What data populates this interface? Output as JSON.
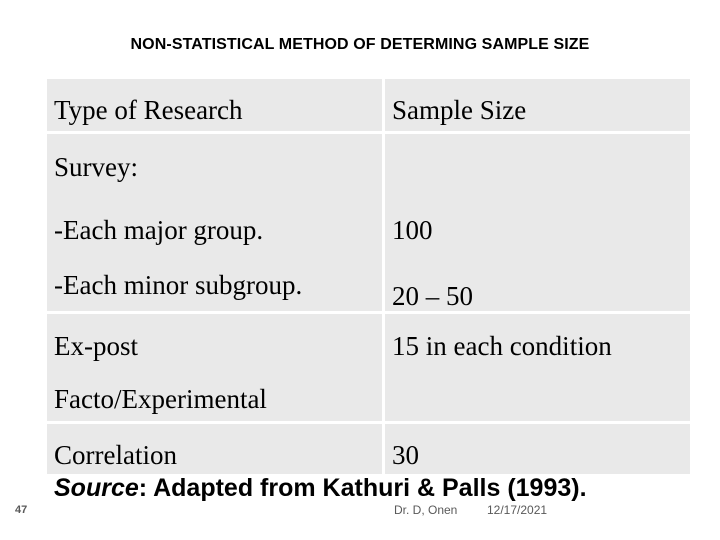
{
  "slide": {
    "title": "NON-STATISTICAL METHOD OF DETERMING SAMPLE SIZE",
    "table": {
      "header": [
        "Type of Research",
        "Sample Size"
      ],
      "rows": [
        [
          "Survey:",
          ""
        ],
        [
          "-Each major group.",
          "100"
        ],
        [
          "-Each minor subgroup.",
          "20 – 50"
        ],
        [
          "Ex-post",
          "15 in each condition"
        ],
        [
          "Facto/Experimental",
          ""
        ],
        [
          "Correlation",
          "30"
        ]
      ]
    },
    "source_label": "Source",
    "source_text": ": Adapted from Kathuri & Palls (1993).",
    "footer": {
      "page_number": "47",
      "author": "Dr. D, Onen",
      "date": "12/17/2021"
    }
  }
}
